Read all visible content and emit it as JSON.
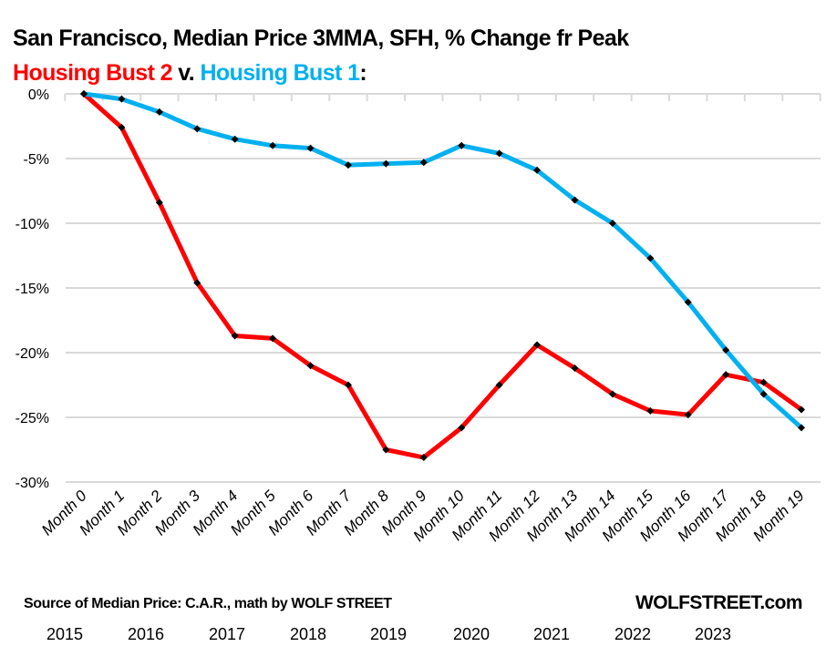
{
  "header": {
    "title": "San Francisco, Median Price 3MMA, SFH, % Change fr Peak",
    "subtitle_series2": "Housing Bust 2",
    "subtitle_connector": " v. ",
    "subtitle_series1": "Housing Bust 1",
    "subtitle_end": ":"
  },
  "footer": {
    "source": "Source of Median Price: C.A.R., math by WOLF STREET",
    "brand": "WOLFSTREET.com",
    "years": [
      "2015",
      "2016",
      "2017",
      "2018",
      "2019",
      "2020",
      "2021",
      "2022",
      "2023"
    ]
  },
  "colors": {
    "series2": "#ff0000",
    "series1": "#00b0f0",
    "markers": "#000000",
    "grid": "#d9d9d9"
  },
  "chart_data": {
    "type": "line",
    "title": "San Francisco, Median Price 3MMA, SFH, % Change fr Peak",
    "subtitle": "Housing Bust 2 v. Housing Bust 1:",
    "xlabel": "",
    "ylabel": "",
    "categories": [
      "Month 0",
      "Month 1",
      "Month 2",
      "Month 3",
      "Month 4",
      "Month 5",
      "Month 6",
      "Month 7",
      "Month 8",
      "Month 9",
      "Month 10",
      "Month 11",
      "Month 12",
      "Month 13",
      "Month 14",
      "Month 15",
      "Month 16",
      "Month 17",
      "Month 18",
      "Month 19"
    ],
    "ylim": [
      -30,
      0
    ],
    "yticks": [
      0,
      -5,
      -10,
      -15,
      -20,
      -25,
      -30
    ],
    "ytick_labels": [
      "0%",
      "-5%",
      "-10%",
      "-15%",
      "-20%",
      "-25%",
      "-30%"
    ],
    "grid": true,
    "legend": "none (series named in subtitle)",
    "series": [
      {
        "name": "Housing Bust 2",
        "color": "#ff0000",
        "values": [
          0,
          -2.6,
          -8.4,
          -14.6,
          -18.7,
          -18.9,
          -21.0,
          -22.5,
          -27.5,
          -28.1,
          -25.8,
          -22.5,
          -19.4,
          -21.2,
          -23.2,
          -24.5,
          -24.8,
          -21.7,
          -22.3,
          -24.4
        ]
      },
      {
        "name": "Housing Bust 1",
        "color": "#00b0f0",
        "values": [
          0,
          -0.4,
          -1.4,
          -2.7,
          -3.5,
          -4.0,
          -4.2,
          -5.5,
          -5.4,
          -5.3,
          -4.0,
          -4.6,
          -5.9,
          -8.2,
          -10.0,
          -12.7,
          -16.1,
          -19.8,
          -23.2,
          -25.8
        ]
      }
    ]
  }
}
